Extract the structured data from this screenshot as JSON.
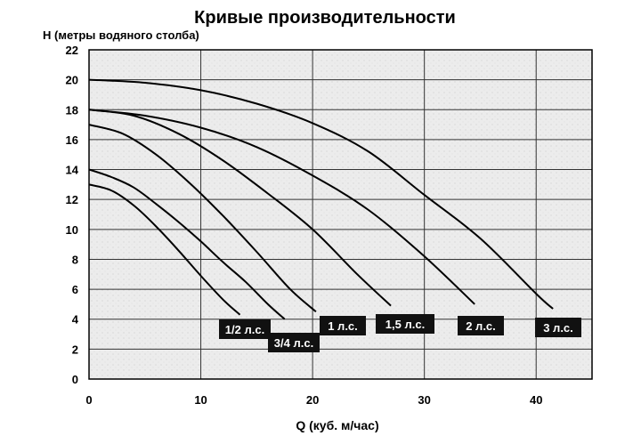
{
  "chart_data": {
    "type": "line",
    "title": "Кривые производительности",
    "xlabel": "Q (куб. м/час)",
    "ylabel": "H (метры водяного столба)",
    "xlim": [
      0,
      45
    ],
    "ylim": [
      0,
      22
    ],
    "xticks": [
      0,
      10,
      20,
      30,
      40
    ],
    "yticks": [
      0,
      2,
      4,
      6,
      8,
      10,
      12,
      14,
      16,
      18,
      20,
      22
    ],
    "grid": true,
    "series": [
      {
        "name": "1/2 л.с.",
        "x": [
          0,
          2,
          4,
          6,
          8,
          10,
          12,
          13.5
        ],
        "y": [
          13,
          12.6,
          11.6,
          10.2,
          8.6,
          6.9,
          5.3,
          4.3
        ]
      },
      {
        "name": "3/4 л.с.",
        "x": [
          0,
          2,
          4,
          6,
          8,
          10,
          12,
          14,
          16,
          17.5
        ],
        "y": [
          14,
          13.5,
          12.8,
          11.7,
          10.5,
          9.2,
          7.8,
          6.5,
          5.0,
          4.0
        ]
      },
      {
        "name": "1 л.с.",
        "x": [
          0,
          3,
          6,
          9,
          12,
          15,
          18,
          20.3
        ],
        "y": [
          17,
          16.4,
          15.0,
          13.1,
          10.9,
          8.5,
          6.0,
          4.5
        ]
      },
      {
        "name": "1,5 л.с.",
        "x": [
          0,
          4,
          8,
          12,
          16,
          20,
          24,
          27
        ],
        "y": [
          18,
          17.6,
          16.4,
          14.6,
          12.4,
          10.0,
          7.0,
          4.9
        ]
      },
      {
        "name": "2 л.с.",
        "x": [
          0,
          5,
          10,
          15,
          20,
          25,
          30,
          34.5
        ],
        "y": [
          18,
          17.6,
          16.8,
          15.5,
          13.6,
          11.3,
          8.2,
          5.0
        ]
      },
      {
        "name": "3 л.с.",
        "x": [
          0,
          5,
          10,
          15,
          20,
          25,
          30,
          35,
          40,
          41.5
        ],
        "y": [
          20,
          19.8,
          19.3,
          18.4,
          17.1,
          15.2,
          12.3,
          9.4,
          5.7,
          4.7
        ]
      }
    ]
  },
  "colors": {
    "background": "#ffffff",
    "plot_bg": "#ececec",
    "grid": "#333333",
    "line": "#000000",
    "label_bg": "#111111"
  }
}
